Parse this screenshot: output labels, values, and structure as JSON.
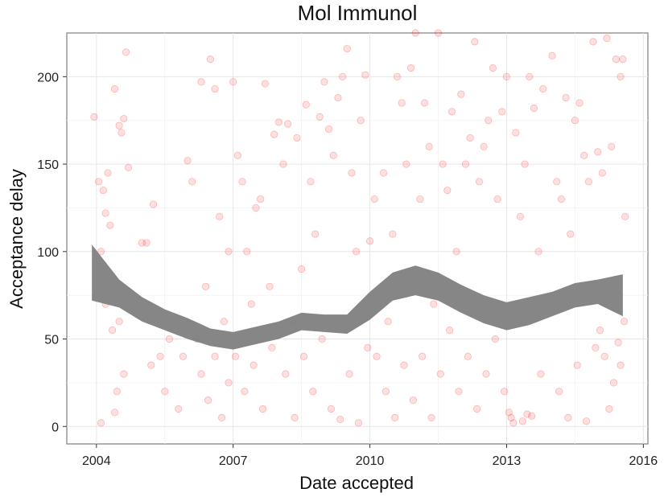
{
  "chart_data": {
    "type": "scatter",
    "title": "Mol Immunol",
    "xlabel": "Date accepted",
    "ylabel": "Acceptance delay",
    "x_ticks": [
      "2004",
      "2007",
      "2010",
      "2013",
      "2016"
    ],
    "y_ticks": [
      "0",
      "50",
      "100",
      "150",
      "200"
    ],
    "xlim": [
      2003.35,
      2016.1
    ],
    "ylim": [
      -10,
      225
    ],
    "grid": true,
    "point_color": "#ff0000",
    "band_color": "#7f7f7f",
    "points": [
      [
        2003.95,
        177
      ],
      [
        2004.05,
        140
      ],
      [
        2004.15,
        135
      ],
      [
        2004.25,
        145
      ],
      [
        2004.4,
        193
      ],
      [
        2004.5,
        172
      ],
      [
        2004.55,
        168
      ],
      [
        2004.6,
        176
      ],
      [
        2004.65,
        214
      ],
      [
        2004.7,
        148
      ],
      [
        2004.2,
        122
      ],
      [
        2004.3,
        115
      ],
      [
        2004.1,
        100
      ],
      [
        2004.35,
        55
      ],
      [
        2004.5,
        60
      ],
      [
        2004.1,
        2
      ],
      [
        2004.4,
        8
      ],
      [
        2004.45,
        20
      ],
      [
        2004.6,
        30
      ],
      [
        2004.2,
        70
      ],
      [
        2005.0,
        105
      ],
      [
        2005.1,
        105
      ],
      [
        2005.2,
        35
      ],
      [
        2005.25,
        127
      ],
      [
        2005.4,
        40
      ],
      [
        2005.5,
        20
      ],
      [
        2005.6,
        50
      ],
      [
        2005.7,
        60
      ],
      [
        2005.8,
        10
      ],
      [
        2005.9,
        40
      ],
      [
        2006.0,
        152
      ],
      [
        2006.1,
        140
      ],
      [
        2006.2,
        50
      ],
      [
        2006.3,
        197
      ],
      [
        2006.4,
        80
      ],
      [
        2006.5,
        210
      ],
      [
        2006.6,
        193
      ],
      [
        2006.7,
        120
      ],
      [
        2006.8,
        60
      ],
      [
        2006.9,
        100
      ],
      [
        2006.3,
        30
      ],
      [
        2006.45,
        15
      ],
      [
        2006.6,
        40
      ],
      [
        2006.75,
        5
      ],
      [
        2006.9,
        25
      ],
      [
        2007.0,
        197
      ],
      [
        2007.1,
        155
      ],
      [
        2007.2,
        140
      ],
      [
        2007.3,
        100
      ],
      [
        2007.4,
        70
      ],
      [
        2007.5,
        125
      ],
      [
        2007.6,
        130
      ],
      [
        2007.7,
        196
      ],
      [
        2007.8,
        80
      ],
      [
        2007.9,
        167
      ],
      [
        2007.05,
        40
      ],
      [
        2007.25,
        20
      ],
      [
        2007.45,
        35
      ],
      [
        2007.65,
        10
      ],
      [
        2007.85,
        45
      ],
      [
        2008.0,
        174
      ],
      [
        2008.1,
        150
      ],
      [
        2008.2,
        173
      ],
      [
        2008.4,
        165
      ],
      [
        2008.5,
        90
      ],
      [
        2008.6,
        184
      ],
      [
        2008.7,
        140
      ],
      [
        2008.8,
        110
      ],
      [
        2008.9,
        177
      ],
      [
        2008.3,
        60
      ],
      [
        2008.15,
        30
      ],
      [
        2008.35,
        5
      ],
      [
        2008.55,
        40
      ],
      [
        2008.75,
        20
      ],
      [
        2008.95,
        50
      ],
      [
        2009.0,
        197
      ],
      [
        2009.1,
        170
      ],
      [
        2009.2,
        155
      ],
      [
        2009.3,
        188
      ],
      [
        2009.4,
        200
      ],
      [
        2009.5,
        216
      ],
      [
        2009.6,
        145
      ],
      [
        2009.7,
        100
      ],
      [
        2009.8,
        175
      ],
      [
        2009.9,
        201
      ],
      [
        2009.15,
        10
      ],
      [
        2009.35,
        4
      ],
      [
        2009.55,
        30
      ],
      [
        2009.75,
        2
      ],
      [
        2009.95,
        45
      ],
      [
        2010.0,
        106
      ],
      [
        2010.1,
        130
      ],
      [
        2010.3,
        145
      ],
      [
        2010.5,
        110
      ],
      [
        2010.6,
        200
      ],
      [
        2010.7,
        185
      ],
      [
        2010.8,
        150
      ],
      [
        2010.9,
        205
      ],
      [
        2010.2,
        75
      ],
      [
        2010.4,
        60
      ],
      [
        2010.15,
        40
      ],
      [
        2010.35,
        20
      ],
      [
        2010.55,
        5
      ],
      [
        2010.75,
        35
      ],
      [
        2010.95,
        15
      ],
      [
        2011.0,
        225
      ],
      [
        2011.1,
        130
      ],
      [
        2011.2,
        185
      ],
      [
        2011.3,
        160
      ],
      [
        2011.4,
        70
      ],
      [
        2011.5,
        225
      ],
      [
        2011.6,
        150
      ],
      [
        2011.7,
        135
      ],
      [
        2011.8,
        180
      ],
      [
        2011.9,
        100
      ],
      [
        2011.15,
        40
      ],
      [
        2011.35,
        5
      ],
      [
        2011.55,
        30
      ],
      [
        2011.75,
        55
      ],
      [
        2011.95,
        20
      ],
      [
        2012.0,
        190
      ],
      [
        2012.1,
        150
      ],
      [
        2012.2,
        165
      ],
      [
        2012.3,
        220
      ],
      [
        2012.4,
        140
      ],
      [
        2012.5,
        160
      ],
      [
        2012.6,
        175
      ],
      [
        2012.7,
        205
      ],
      [
        2012.8,
        130
      ],
      [
        2012.9,
        180
      ],
      [
        2012.15,
        40
      ],
      [
        2012.35,
        10
      ],
      [
        2012.55,
        30
      ],
      [
        2012.75,
        50
      ],
      [
        2012.95,
        20
      ],
      [
        2013.0,
        200
      ],
      [
        2013.05,
        8
      ],
      [
        2013.1,
        5
      ],
      [
        2013.2,
        168
      ],
      [
        2013.3,
        120
      ],
      [
        2013.4,
        150
      ],
      [
        2013.5,
        200
      ],
      [
        2013.6,
        182
      ],
      [
        2013.7,
        100
      ],
      [
        2013.8,
        193
      ],
      [
        2013.15,
        2
      ],
      [
        2013.35,
        3
      ],
      [
        2013.45,
        7
      ],
      [
        2013.55,
        6
      ],
      [
        2013.75,
        30
      ],
      [
        2014.0,
        212
      ],
      [
        2014.1,
        140
      ],
      [
        2014.2,
        130
      ],
      [
        2014.3,
        188
      ],
      [
        2014.4,
        110
      ],
      [
        2014.5,
        175
      ],
      [
        2014.6,
        185
      ],
      [
        2014.7,
        155
      ],
      [
        2014.8,
        140
      ],
      [
        2014.9,
        220
      ],
      [
        2014.15,
        20
      ],
      [
        2014.35,
        5
      ],
      [
        2014.55,
        35
      ],
      [
        2014.75,
        3
      ],
      [
        2014.95,
        45
      ],
      [
        2015.0,
        157
      ],
      [
        2015.1,
        145
      ],
      [
        2015.2,
        222
      ],
      [
        2015.3,
        160
      ],
      [
        2015.4,
        210
      ],
      [
        2015.5,
        200
      ],
      [
        2015.55,
        210
      ],
      [
        2015.6,
        120
      ],
      [
        2015.15,
        40
      ],
      [
        2015.35,
        25
      ],
      [
        2015.05,
        55
      ],
      [
        2015.25,
        10
      ],
      [
        2015.45,
        48
      ],
      [
        2015.5,
        35
      ],
      [
        2015.58,
        60
      ]
    ],
    "smooth": {
      "x": [
        2003.9,
        2004.5,
        2005.0,
        2005.5,
        2006.0,
        2006.5,
        2007.0,
        2007.5,
        2008.0,
        2008.5,
        2009.0,
        2009.5,
        2010.0,
        2010.5,
        2011.0,
        2011.5,
        2012.0,
        2012.5,
        2013.0,
        2013.5,
        2014.0,
        2014.5,
        2015.0,
        2015.55
      ],
      "fit": [
        88,
        76,
        67,
        61,
        56,
        51,
        49,
        52,
        55,
        60,
        59,
        59,
        69,
        80,
        83,
        80,
        73,
        67,
        63,
        66,
        70,
        75,
        77,
        75
      ],
      "lower": [
        72,
        68,
        60,
        55,
        50,
        46,
        44,
        47,
        50,
        55,
        54,
        53,
        61,
        72,
        75,
        72,
        65,
        59,
        55,
        58,
        63,
        68,
        70,
        63
      ],
      "upper": [
        104,
        84,
        74,
        67,
        62,
        56,
        54,
        57,
        60,
        65,
        64,
        64,
        77,
        88,
        92,
        88,
        81,
        75,
        71,
        74,
        77,
        82,
        84,
        87
      ]
    }
  }
}
